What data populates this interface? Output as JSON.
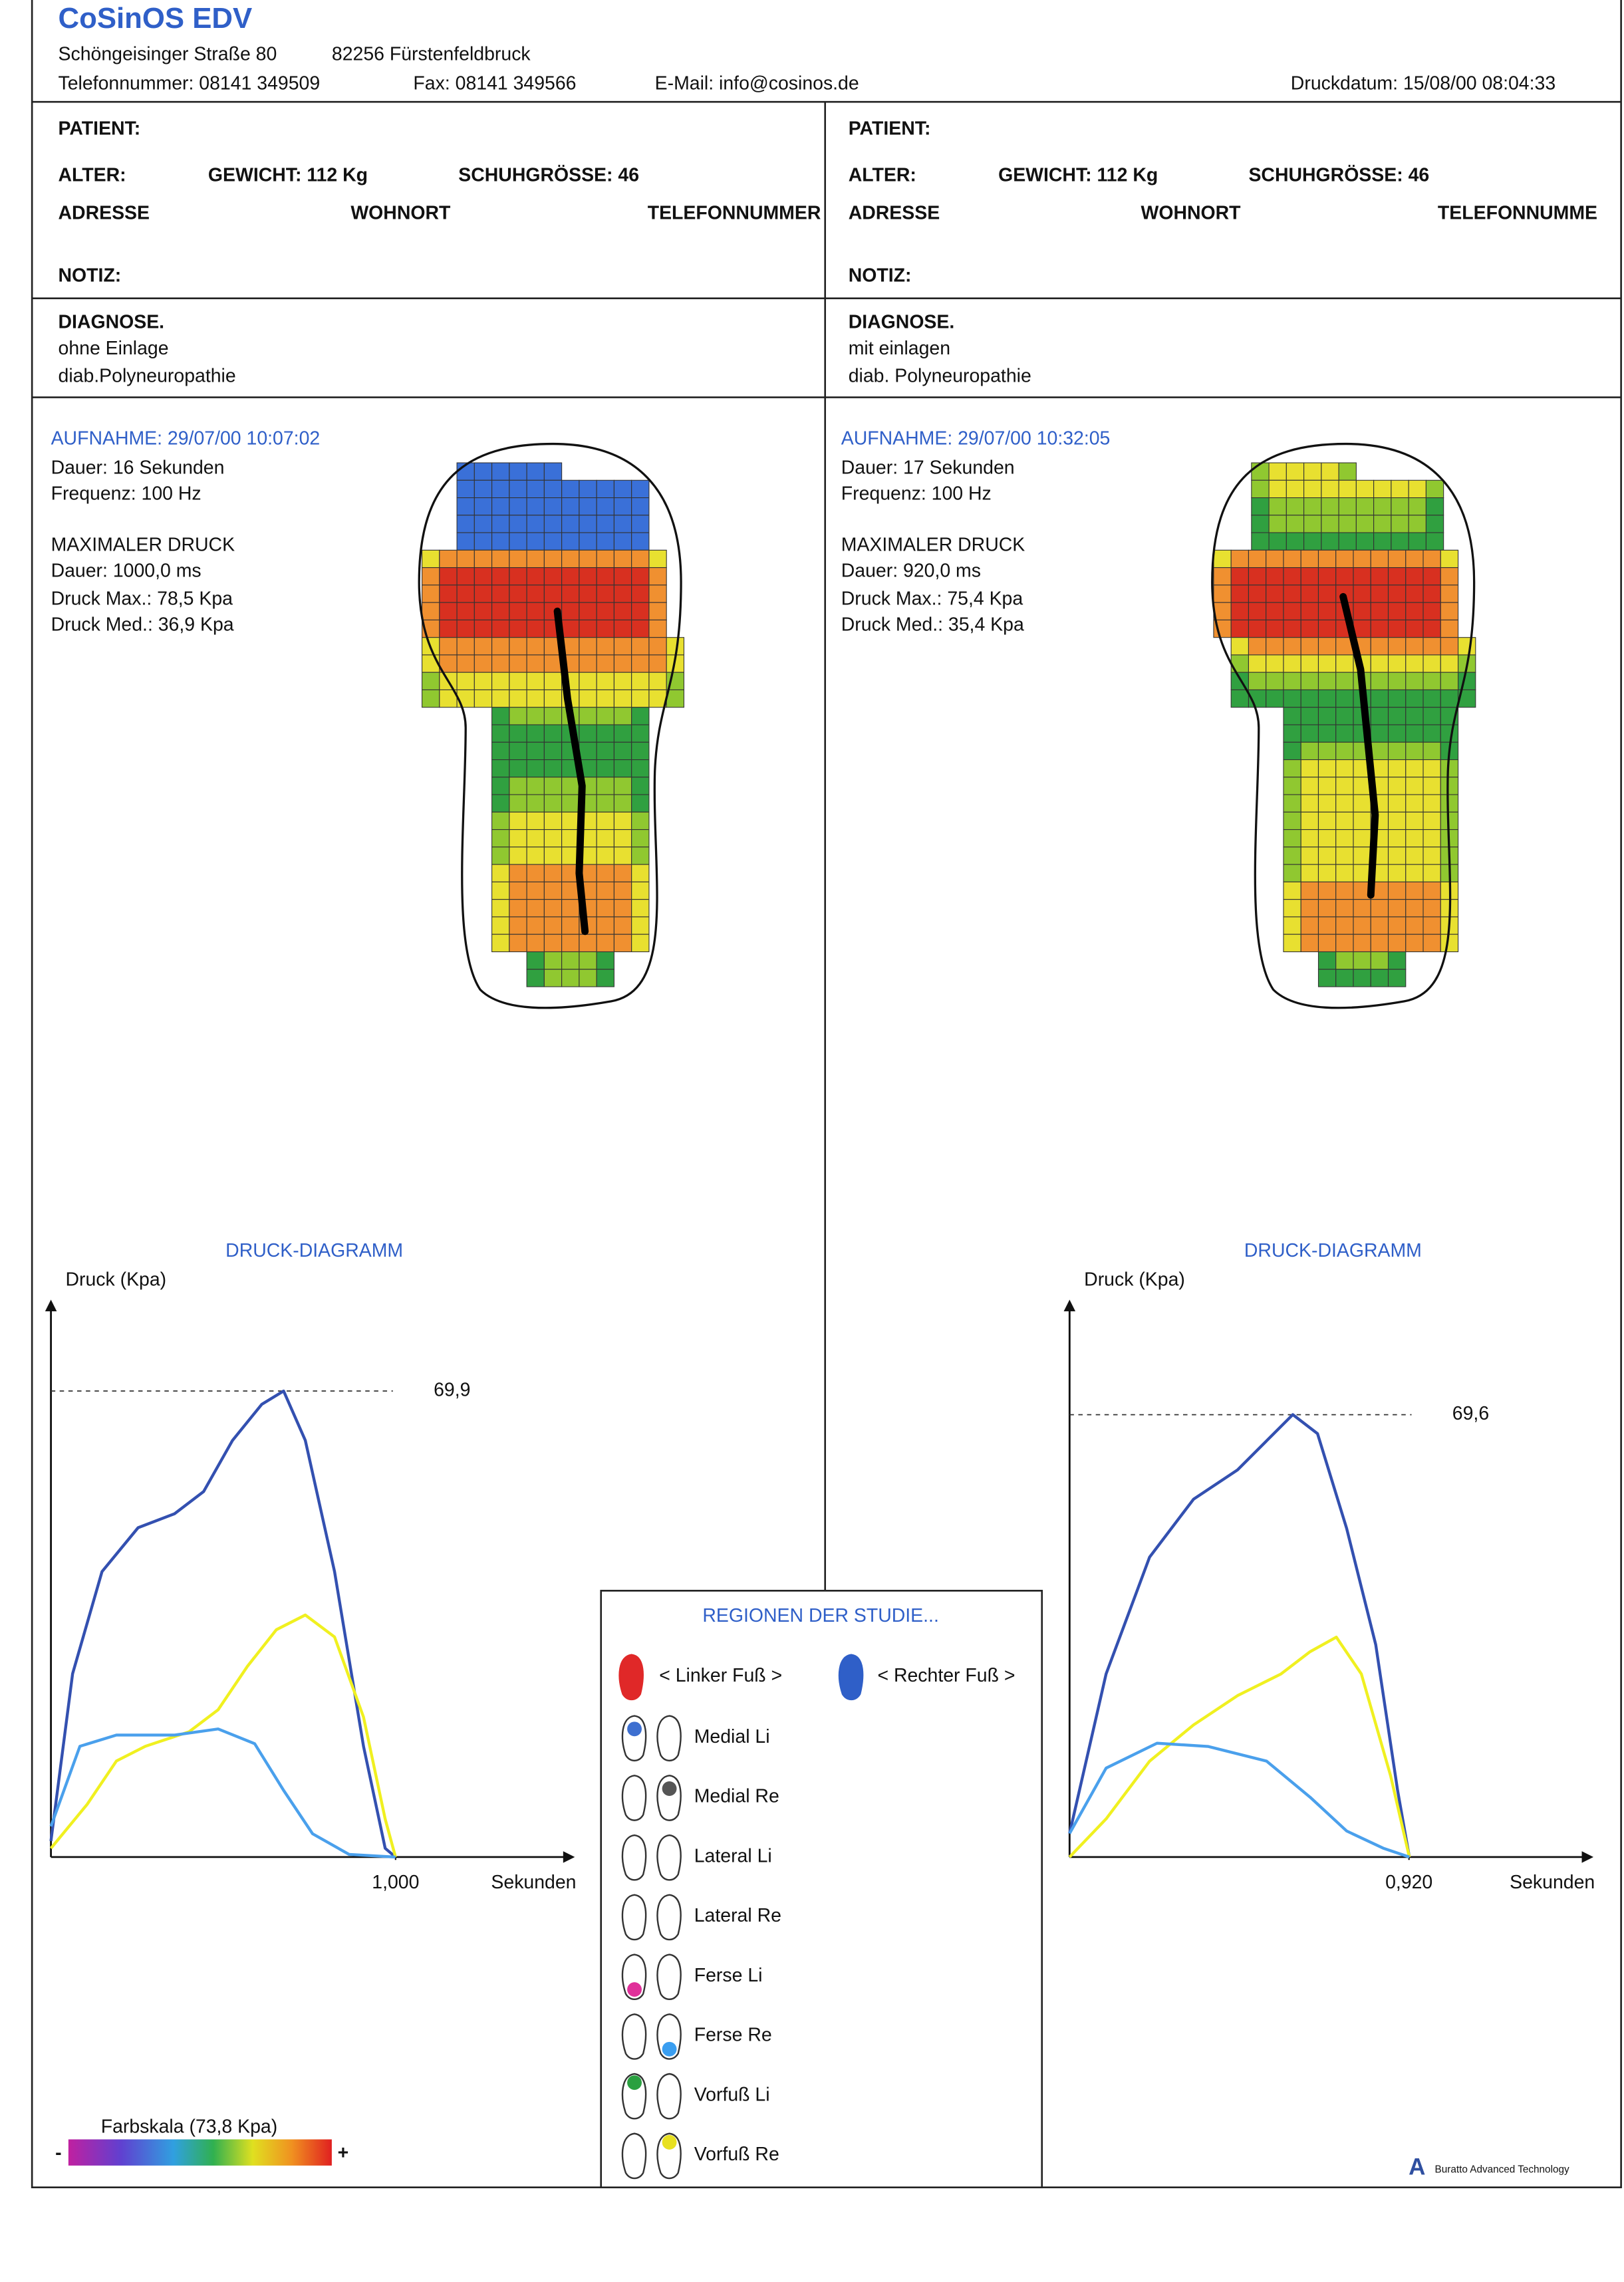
{
  "header": {
    "company": "CoSinOS EDV",
    "street": "Schöngeisinger Straße 80",
    "city": "82256 Fürstenfeldbruck",
    "phone": "Telefonnummer: 08141 349509",
    "fax": "Fax: 08141 349566",
    "email": "E-Mail: info@cosinos.de",
    "print_date": "Druckdatum: 15/08/00 08:04:33"
  },
  "panels": [
    {
      "patient": "PATIENT:",
      "age": "ALTER:",
      "weight": "GEWICHT: 112 Kg",
      "shoe": "SCHUHGRÖSSE: 46",
      "address": "ADRESSE",
      "city": "WOHNORT",
      "phone": "TELEFONNUMMER",
      "note": "NOTIZ:",
      "diagnosis_title": "DIAGNOSE.",
      "diagnosis": [
        "ohne Einlage",
        "diab.Polyneuropathie"
      ],
      "recording": "AUFNAHME: 29/07/00 10:07:02",
      "duration": "Dauer: 16 Sekunden",
      "frequency": "Frequenz: 100 Hz",
      "max_title": "MAXIMALER DRUCK",
      "max_duration": "Dauer: 1000,0 ms",
      "max_pressure": "Druck Max.: 78,5 Kpa",
      "med_pressure": "Druck Med.: 36,9 Kpa"
    },
    {
      "patient": "PATIENT:",
      "age": "ALTER:",
      "weight": "GEWICHT: 112 Kg",
      "shoe": "SCHUHGRÖSSE: 46",
      "address": "ADRESSE",
      "city": "WOHNORT",
      "phone": "TELEFONNUMME",
      "note": "NOTIZ:",
      "diagnosis_title": "DIAGNOSE.",
      "diagnosis": [
        "mit einlagen",
        "diab. Polyneuropathie"
      ],
      "recording": "AUFNAHME: 29/07/00 10:32:05",
      "duration": "Dauer: 17 Sekunden",
      "frequency": "Frequenz: 100 Hz",
      "max_title": "MAXIMALER DRUCK",
      "max_duration": "Dauer: 920,0 ms",
      "max_pressure": "Druck Max.: 75,4 Kpa",
      "med_pressure": "Druck Med.: 35,4 Kpa"
    }
  ],
  "chart_data": [
    {
      "type": "line",
      "title": "DRUCK-DIAGRAMM",
      "ylabel": "Druck (Kpa)",
      "xlabel": "Sekunden",
      "xlim": [
        0,
        1.52
      ],
      "ylim": [
        0,
        83.6
      ],
      "xticks": [
        {
          "value": 1.0,
          "label": "1,000"
        }
      ],
      "yticks": [
        {
          "value": 69.9,
          "label": "69,9"
        }
      ],
      "series": [
        {
          "color": "#3350b0",
          "x": [
            0,
            0.063,
            0.148,
            0.253,
            0.359,
            0.443,
            0.527,
            0.612,
            0.675,
            0.738,
            0.823,
            0.907,
            0.97,
            1.0
          ],
          "values": [
            2.4,
            27.5,
            42.8,
            49.4,
            51.5,
            54.8,
            62.5,
            67.9,
            69.9,
            62.5,
            42.8,
            16.6,
            1.3,
            0
          ]
        },
        {
          "color": "#f0f020",
          "x": [
            0,
            0.105,
            0.19,
            0.274,
            0.401,
            0.485,
            0.57,
            0.654,
            0.738,
            0.823,
            0.907,
            0.97,
            1.0
          ],
          "values": [
            1.3,
            7.9,
            14.4,
            16.6,
            18.8,
            22.1,
            28.6,
            34.1,
            36.3,
            33.0,
            21.0,
            5.7,
            0
          ]
        },
        {
          "color": "#4aa0ec",
          "x": [
            0,
            0.084,
            0.19,
            0.359,
            0.485,
            0.591,
            0.675,
            0.759,
            0.865,
            1.0
          ],
          "values": [
            4.6,
            16.6,
            18.3,
            18.3,
            19.2,
            17.0,
            10.0,
            3.5,
            0.4,
            0
          ]
        }
      ]
    },
    {
      "type": "line",
      "title": "DRUCK-DIAGRAMM",
      "ylabel": "Druck (Kpa)",
      "xlabel": "Sekunden",
      "xlim": [
        0,
        1.42
      ],
      "ylim": [
        0,
        87.7
      ],
      "xticks": [
        {
          "value": 0.92,
          "label": "0,920"
        }
      ],
      "yticks": [
        {
          "value": 69.6,
          "label": "69,6"
        }
      ],
      "series": [
        {
          "color": "#3350b0",
          "x": [
            0,
            0.099,
            0.217,
            0.336,
            0.455,
            0.534,
            0.605,
            0.672,
            0.751,
            0.83,
            0.889,
            0.921
          ],
          "values": [
            3.7,
            28.8,
            47.2,
            56.3,
            60.9,
            65.5,
            69.6,
            66.6,
            51.7,
            33.4,
            10.5,
            0
          ]
        },
        {
          "color": "#f0f020",
          "x": [
            0,
            0.099,
            0.217,
            0.336,
            0.455,
            0.573,
            0.652,
            0.723,
            0.791,
            0.87,
            0.921
          ],
          "values": [
            0,
            6.0,
            15.1,
            20.8,
            25.4,
            28.8,
            32.3,
            34.6,
            28.8,
            12.8,
            0
          ]
        },
        {
          "color": "#4aa0ec",
          "x": [
            0,
            0.099,
            0.237,
            0.375,
            0.534,
            0.652,
            0.751,
            0.85,
            0.921
          ],
          "values": [
            3.7,
            14.0,
            17.9,
            17.4,
            15.1,
            9.4,
            4.1,
            1.4,
            0
          ]
        }
      ]
    }
  ],
  "legend": {
    "title": "REGIONEN DER STUDIE...",
    "items": [
      {
        "label": "< Linker Fuß >",
        "color": "#e02828"
      },
      {
        "label": "< Rechter Fuß >",
        "color": "#2f5fc8"
      },
      {
        "label": "Medial Li",
        "color": "#3d6fd0"
      },
      {
        "label": "Medial Re",
        "color": "#555555"
      },
      {
        "label": "Lateral Li",
        "color": "#b8b8c0"
      },
      {
        "label": "Lateral Re",
        "color": "#111111"
      },
      {
        "label": "Ferse Li",
        "color": "#e0309a"
      },
      {
        "label": "Ferse Re",
        "color": "#3a9ef0"
      },
      {
        "label": "Vorfuß Li",
        "color": "#2aa040"
      },
      {
        "label": "Vorfuß Re",
        "color": "#e8e020"
      }
    ]
  },
  "color_scale": {
    "label": "Farbskala (73,8 Kpa)",
    "minus": "-",
    "plus": "+"
  },
  "footer": "Buratto Advanced Technology"
}
